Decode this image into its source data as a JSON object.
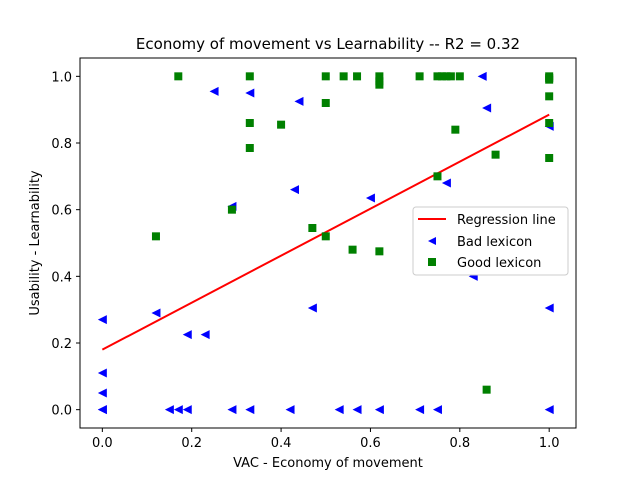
{
  "chart_data": {
    "type": "scatter",
    "title": "Economy of movement  vs  Learnability -- R2 = 0.32",
    "xlabel": "VAC - Economy of movement",
    "ylabel": "Usability - Learnability",
    "xlim": [
      -0.05,
      1.06
    ],
    "ylim": [
      -0.055,
      1.055
    ],
    "xticks": [
      "0.0",
      "0.2",
      "0.4",
      "0.6",
      "0.8",
      "1.0"
    ],
    "yticks": [
      "0.0",
      "0.2",
      "0.4",
      "0.6",
      "0.8",
      "1.0"
    ],
    "legend_position": "center-right",
    "regression": {
      "name": "Regression line",
      "color": "#ff0000",
      "x": [
        0,
        1
      ],
      "y": [
        0.18,
        0.885
      ]
    },
    "series": [
      {
        "name": "Bad lexicon",
        "marker": "triangle-left",
        "color": "#0000ff",
        "points": [
          [
            0.0,
            0.27
          ],
          [
            0.0,
            0.11
          ],
          [
            0.0,
            0.05
          ],
          [
            0.0,
            0.0
          ],
          [
            0.0,
            0.0
          ],
          [
            0.12,
            0.29
          ],
          [
            0.15,
            0.0
          ],
          [
            0.17,
            0.0
          ],
          [
            0.19,
            0.0
          ],
          [
            0.19,
            0.225
          ],
          [
            0.23,
            0.225
          ],
          [
            0.25,
            0.955
          ],
          [
            0.29,
            0.0
          ],
          [
            0.29,
            0.61
          ],
          [
            0.33,
            0.95
          ],
          [
            0.33,
            0.0
          ],
          [
            0.42,
            0.0
          ],
          [
            0.43,
            0.66
          ],
          [
            0.44,
            0.925
          ],
          [
            0.47,
            0.305
          ],
          [
            0.53,
            0.0
          ],
          [
            0.57,
            0.0
          ],
          [
            0.6,
            0.635
          ],
          [
            0.62,
            0.0
          ],
          [
            0.71,
            0.0
          ],
          [
            0.75,
            0.0
          ],
          [
            0.77,
            0.68
          ],
          [
            0.83,
            0.4
          ],
          [
            0.85,
            1.0
          ],
          [
            0.86,
            0.905
          ],
          [
            1.0,
            0.305
          ],
          [
            1.0,
            0.85
          ],
          [
            1.0,
            0.0
          ]
        ]
      },
      {
        "name": "Good lexicon",
        "marker": "square",
        "color": "#008000",
        "points": [
          [
            0.12,
            0.52
          ],
          [
            0.17,
            1.0
          ],
          [
            0.29,
            0.6
          ],
          [
            0.33,
            1.0
          ],
          [
            0.33,
            0.86
          ],
          [
            0.33,
            0.785
          ],
          [
            0.4,
            0.855
          ],
          [
            0.47,
            0.545
          ],
          [
            0.5,
            1.0
          ],
          [
            0.5,
            0.92
          ],
          [
            0.5,
            0.52
          ],
          [
            0.54,
            1.0
          ],
          [
            0.56,
            0.48
          ],
          [
            0.57,
            1.0
          ],
          [
            0.62,
            1.0
          ],
          [
            0.62,
            0.985
          ],
          [
            0.62,
            0.975
          ],
          [
            0.62,
            0.475
          ],
          [
            0.71,
            1.0
          ],
          [
            0.75,
            1.0
          ],
          [
            0.76,
            1.0
          ],
          [
            0.77,
            1.0
          ],
          [
            0.78,
            1.0
          ],
          [
            0.8,
            1.0
          ],
          [
            0.75,
            0.7
          ],
          [
            0.79,
            0.84
          ],
          [
            0.86,
            0.06
          ],
          [
            0.88,
            0.765
          ],
          [
            1.0,
            1.0
          ],
          [
            1.0,
            0.995
          ],
          [
            1.0,
            0.99
          ],
          [
            1.0,
            0.94
          ],
          [
            1.0,
            0.86
          ],
          [
            1.0,
            0.755
          ]
        ]
      }
    ]
  }
}
